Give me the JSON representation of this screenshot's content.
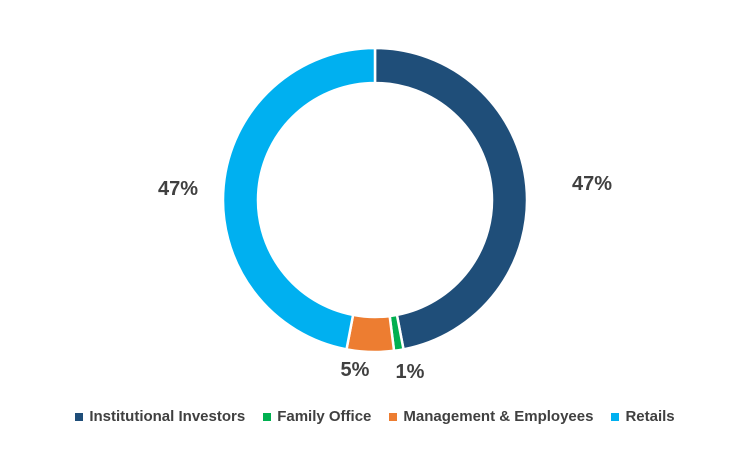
{
  "chart_data": {
    "type": "pie",
    "donut": true,
    "categories": [
      "Institutional Investors",
      "Family Office",
      "Management & Employees",
      "Retails"
    ],
    "values": [
      47,
      1,
      5,
      47
    ],
    "data_labels": [
      "47%",
      "1%",
      "5%",
      "47%"
    ],
    "colors": [
      "#1F4E79",
      "#00B050",
      "#ED7D31",
      "#00B0F0"
    ],
    "legend": "bottom"
  }
}
